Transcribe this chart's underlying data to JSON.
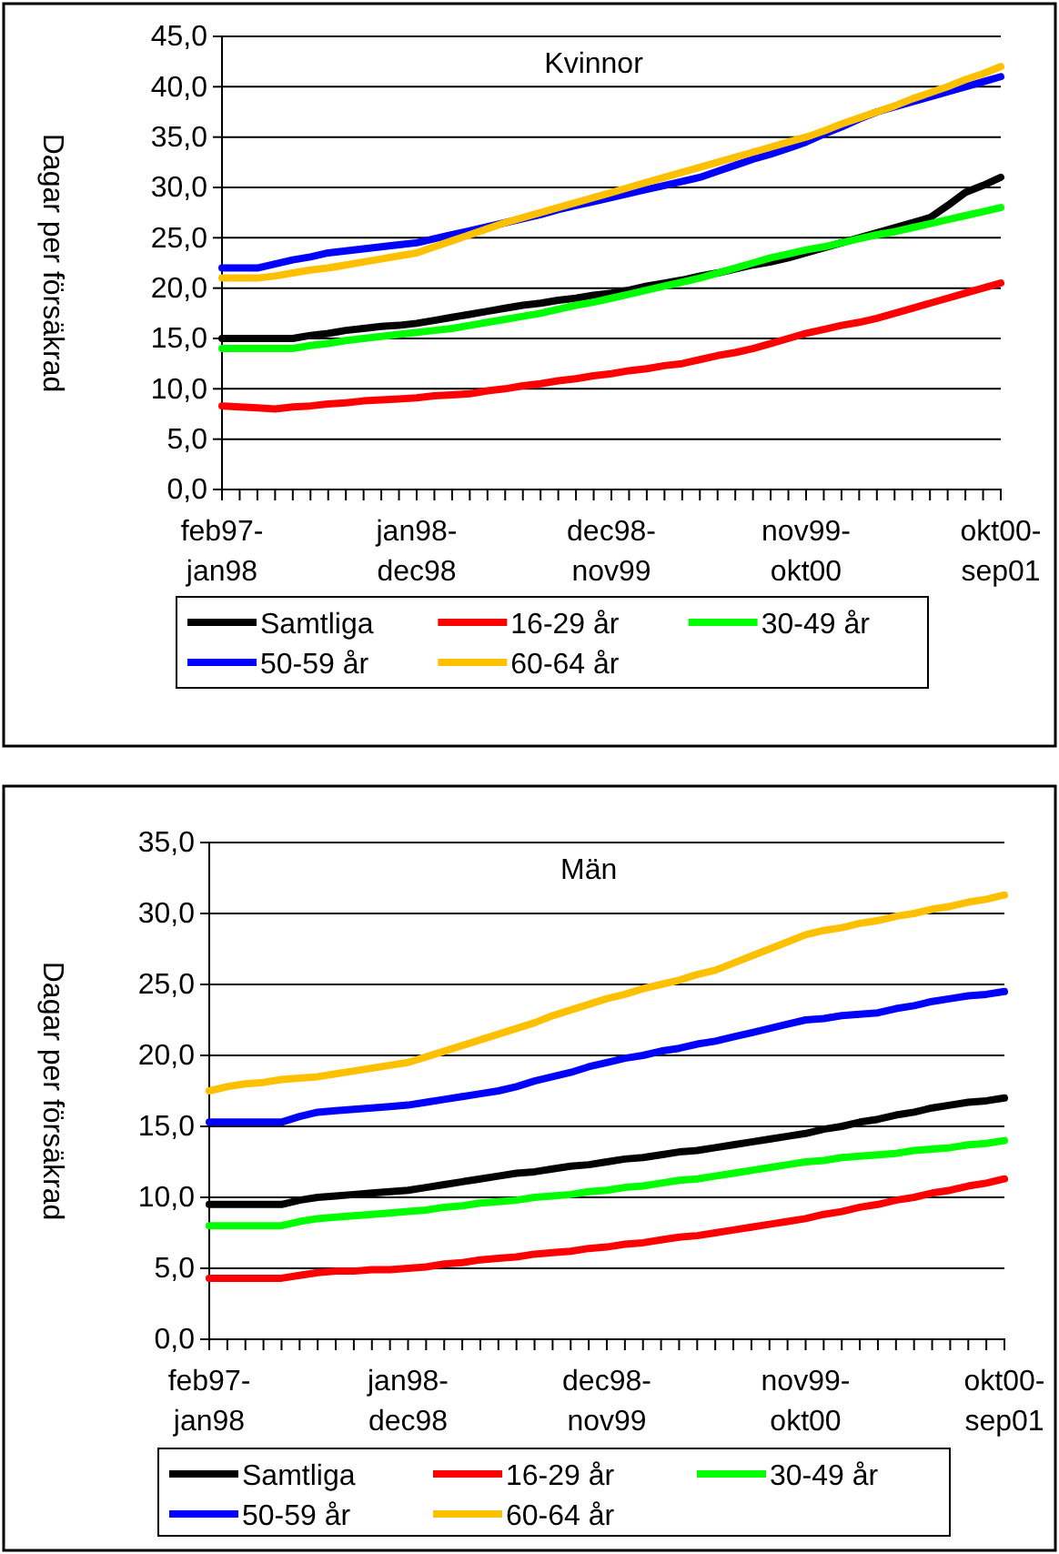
{
  "chart_data": [
    {
      "type": "line",
      "title": "Kvinnor",
      "ylabel": "Dagar per försäkrad",
      "legend": "bottom",
      "grid": "y",
      "marker": "none",
      "line_style": "solid",
      "categories": [
        "feb97-jan98",
        null,
        null,
        null,
        null,
        null,
        null,
        null,
        null,
        null,
        null,
        "jan98-dec98",
        null,
        null,
        null,
        null,
        null,
        null,
        null,
        null,
        null,
        null,
        "dec98-nov99",
        null,
        null,
        null,
        null,
        null,
        null,
        null,
        null,
        null,
        null,
        "nov99-okt00",
        null,
        null,
        null,
        null,
        null,
        null,
        null,
        null,
        null,
        null,
        "okt00-sep01"
      ],
      "ylim": [
        0,
        45
      ],
      "yticks": [
        {
          "value": 0,
          "label": "0,0"
        },
        {
          "value": 5,
          "label": "5,0"
        },
        {
          "value": 10,
          "label": "10,0"
        },
        {
          "value": 15,
          "label": "15,0"
        },
        {
          "value": 20,
          "label": "20,0"
        },
        {
          "value": 25,
          "label": "25,0"
        },
        {
          "value": 30,
          "label": "30,0"
        },
        {
          "value": 35,
          "label": "35,0"
        },
        {
          "value": 40,
          "label": "40,0"
        },
        {
          "value": 45,
          "label": "45,0"
        }
      ],
      "series": [
        {
          "name": "Samtliga",
          "color": "#000000",
          "values": [
            15,
            15,
            15,
            15,
            15,
            15.3,
            15.5,
            15.8,
            16,
            16.2,
            16.3,
            16.5,
            16.8,
            17.1,
            17.4,
            17.7,
            18,
            18.3,
            18.5,
            18.8,
            19,
            19.3,
            19.5,
            19.8,
            20.2,
            20.5,
            20.8,
            21.2,
            21.5,
            21.9,
            22.3,
            22.6,
            23,
            23.5,
            24,
            24.5,
            25,
            25.5,
            26,
            26.5,
            27,
            28.2,
            29.5,
            30.2,
            31
          ]
        },
        {
          "name": "16-29 år",
          "color": "#ff0000",
          "values": [
            8.3,
            8.2,
            8.1,
            8,
            8.2,
            8.3,
            8.5,
            8.6,
            8.8,
            8.9,
            9,
            9.1,
            9.3,
            9.4,
            9.5,
            9.8,
            10,
            10.3,
            10.5,
            10.8,
            11,
            11.3,
            11.5,
            11.8,
            12,
            12.3,
            12.5,
            12.9,
            13.3,
            13.6,
            14,
            14.5,
            15,
            15.5,
            15.9,
            16.3,
            16.6,
            17,
            17.5,
            18,
            18.5,
            19,
            19.5,
            20,
            20.5
          ]
        },
        {
          "name": "30-49 år",
          "color": "#00ff00",
          "values": [
            14,
            14,
            14,
            14,
            14,
            14.3,
            14.5,
            14.8,
            15,
            15.2,
            15.4,
            15.6,
            15.8,
            16,
            16.3,
            16.6,
            16.9,
            17.2,
            17.5,
            17.9,
            18.3,
            18.6,
            19,
            19.4,
            19.8,
            20.2,
            20.6,
            21,
            21.5,
            22,
            22.5,
            23,
            23.4,
            23.8,
            24.1,
            24.5,
            24.9,
            25.3,
            25.6,
            26,
            26.4,
            26.8,
            27.2,
            27.6,
            28
          ]
        },
        {
          "name": "50-59 år",
          "color": "#0000ff",
          "values": [
            22,
            22,
            22,
            22.4,
            22.8,
            23.1,
            23.5,
            23.7,
            23.9,
            24.1,
            24.3,
            24.5,
            24.9,
            25.3,
            25.7,
            26.1,
            26.5,
            26.9,
            27.3,
            27.8,
            28.2,
            28.6,
            29,
            29.4,
            29.8,
            30.2,
            30.6,
            31,
            31.6,
            32.2,
            32.8,
            33.3,
            33.9,
            34.5,
            35.3,
            36,
            36.8,
            37.5,
            38,
            38.5,
            39,
            39.5,
            40,
            40.5,
            41
          ]
        },
        {
          "name": "60-64 år",
          "color": "#ffc000",
          "values": [
            21,
            21,
            21,
            21.2,
            21.5,
            21.8,
            22,
            22.3,
            22.6,
            22.9,
            23.2,
            23.5,
            24.1,
            24.7,
            25.3,
            25.9,
            26.5,
            27,
            27.5,
            28,
            28.5,
            29,
            29.5,
            30,
            30.5,
            31,
            31.5,
            32,
            32.5,
            33,
            33.5,
            34,
            34.5,
            35,
            35.6,
            36.3,
            36.9,
            37.5,
            38.1,
            38.8,
            39.4,
            40,
            40.7,
            41.3,
            42
          ]
        }
      ]
    },
    {
      "type": "line",
      "title": "Män",
      "ylabel": "Dagar per försäkrad",
      "legend": "bottom",
      "grid": "y",
      "marker": "none",
      "line_style": "solid",
      "categories": [
        "feb97-jan98",
        null,
        null,
        null,
        null,
        null,
        null,
        null,
        null,
        null,
        null,
        "jan98-dec98",
        null,
        null,
        null,
        null,
        null,
        null,
        null,
        null,
        null,
        null,
        "dec98-nov99",
        null,
        null,
        null,
        null,
        null,
        null,
        null,
        null,
        null,
        null,
        "nov99-okt00",
        null,
        null,
        null,
        null,
        null,
        null,
        null,
        null,
        null,
        null,
        "okt00-sep01"
      ],
      "ylim": [
        0,
        35
      ],
      "yticks": [
        {
          "value": 0,
          "label": "0,0"
        },
        {
          "value": 5,
          "label": "5,0"
        },
        {
          "value": 10,
          "label": "10,0"
        },
        {
          "value": 15,
          "label": "15,0"
        },
        {
          "value": 20,
          "label": "20,0"
        },
        {
          "value": 25,
          "label": "25,0"
        },
        {
          "value": 30,
          "label": "30,0"
        },
        {
          "value": 35,
          "label": "35,0"
        }
      ],
      "series": [
        {
          "name": "Samtliga",
          "color": "#000000",
          "values": [
            9.5,
            9.5,
            9.5,
            9.5,
            9.5,
            9.8,
            10,
            10.1,
            10.2,
            10.3,
            10.4,
            10.5,
            10.7,
            10.9,
            11.1,
            11.3,
            11.5,
            11.7,
            11.8,
            12,
            12.2,
            12.3,
            12.5,
            12.7,
            12.8,
            13,
            13.2,
            13.3,
            13.5,
            13.7,
            13.9,
            14.1,
            14.3,
            14.5,
            14.8,
            15,
            15.3,
            15.5,
            15.8,
            16,
            16.3,
            16.5,
            16.7,
            16.8,
            17
          ]
        },
        {
          "name": "16-29 år",
          "color": "#ff0000",
          "values": [
            4.3,
            4.3,
            4.3,
            4.3,
            4.3,
            4.5,
            4.7,
            4.8,
            4.8,
            4.9,
            4.9,
            5,
            5.1,
            5.3,
            5.4,
            5.6,
            5.7,
            5.8,
            6,
            6.1,
            6.2,
            6.4,
            6.5,
            6.7,
            6.8,
            7,
            7.2,
            7.3,
            7.5,
            7.7,
            7.9,
            8.1,
            8.3,
            8.5,
            8.8,
            9,
            9.3,
            9.5,
            9.8,
            10,
            10.3,
            10.5,
            10.8,
            11,
            11.3
          ]
        },
        {
          "name": "30-49 år",
          "color": "#00ff00",
          "values": [
            8,
            8,
            8,
            8,
            8,
            8.3,
            8.5,
            8.6,
            8.7,
            8.8,
            8.9,
            9,
            9.1,
            9.3,
            9.4,
            9.6,
            9.7,
            9.8,
            10,
            10.1,
            10.2,
            10.4,
            10.5,
            10.7,
            10.8,
            11,
            11.2,
            11.3,
            11.5,
            11.7,
            11.9,
            12.1,
            12.3,
            12.5,
            12.6,
            12.8,
            12.9,
            13,
            13.1,
            13.3,
            13.4,
            13.5,
            13.7,
            13.8,
            14
          ]
        },
        {
          "name": "50-59 år",
          "color": "#0000ff",
          "values": [
            15.3,
            15.3,
            15.3,
            15.3,
            15.3,
            15.7,
            16,
            16.1,
            16.2,
            16.3,
            16.4,
            16.5,
            16.7,
            16.9,
            17.1,
            17.3,
            17.5,
            17.8,
            18.2,
            18.5,
            18.8,
            19.2,
            19.5,
            19.8,
            20,
            20.3,
            20.5,
            20.8,
            21,
            21.3,
            21.6,
            21.9,
            22.2,
            22.5,
            22.6,
            22.8,
            22.9,
            23,
            23.3,
            23.5,
            23.8,
            24,
            24.2,
            24.3,
            24.5
          ]
        },
        {
          "name": "60-64 år",
          "color": "#ffc000",
          "values": [
            17.5,
            17.8,
            18,
            18.1,
            18.3,
            18.4,
            18.5,
            18.7,
            18.9,
            19.1,
            19.3,
            19.5,
            19.9,
            20.3,
            20.7,
            21.1,
            21.5,
            21.9,
            22.3,
            22.8,
            23.2,
            23.6,
            24,
            24.3,
            24.7,
            25,
            25.3,
            25.7,
            26,
            26.5,
            27,
            27.5,
            28,
            28.5,
            28.8,
            29,
            29.3,
            29.5,
            29.8,
            30,
            30.3,
            30.5,
            30.8,
            31,
            31.3
          ]
        }
      ]
    }
  ]
}
